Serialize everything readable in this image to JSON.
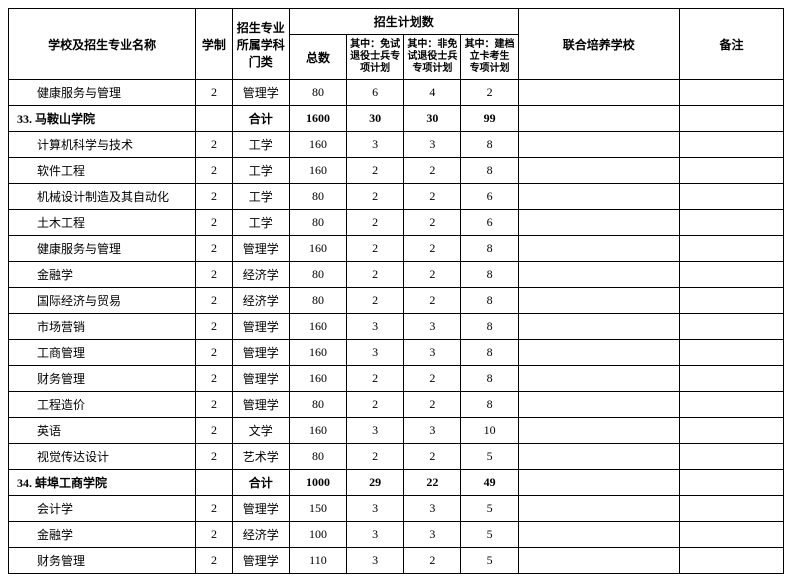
{
  "headers": {
    "name": "学校及招生专业名称",
    "xuezhi": "学制",
    "menlei": "招生专业\n所属学科\n门类",
    "plan_group": "招生计划数",
    "total": "总数",
    "sub1": "其中：免试退役士兵专项计划",
    "sub2": "其中：非免试退役士兵专项计划",
    "sub3": "其中：建档立卡考生专项计划",
    "joint": "联合培养学校",
    "remark": "备注"
  },
  "rows": [
    {
      "type": "major",
      "name": "健康服务与管理",
      "xuezhi": "2",
      "menlei": "管理学",
      "total": "80",
      "s1": "6",
      "s2": "4",
      "s3": "2",
      "joint": "",
      "remark": ""
    },
    {
      "type": "school",
      "name": "33. 马鞍山学院",
      "xuezhi": "",
      "menlei": "合计",
      "total": "1600",
      "s1": "30",
      "s2": "30",
      "s3": "99",
      "joint": "",
      "remark": ""
    },
    {
      "type": "major",
      "name": "计算机科学与技术",
      "xuezhi": "2",
      "menlei": "工学",
      "total": "160",
      "s1": "3",
      "s2": "3",
      "s3": "8",
      "joint": "",
      "remark": ""
    },
    {
      "type": "major",
      "name": "软件工程",
      "xuezhi": "2",
      "menlei": "工学",
      "total": "160",
      "s1": "2",
      "s2": "2",
      "s3": "8",
      "joint": "",
      "remark": ""
    },
    {
      "type": "major",
      "name": "机械设计制造及其自动化",
      "xuezhi": "2",
      "menlei": "工学",
      "total": "80",
      "s1": "2",
      "s2": "2",
      "s3": "6",
      "joint": "",
      "remark": ""
    },
    {
      "type": "major",
      "name": "土木工程",
      "xuezhi": "2",
      "menlei": "工学",
      "total": "80",
      "s1": "2",
      "s2": "2",
      "s3": "6",
      "joint": "",
      "remark": ""
    },
    {
      "type": "major",
      "name": "健康服务与管理",
      "xuezhi": "2",
      "menlei": "管理学",
      "total": "160",
      "s1": "2",
      "s2": "2",
      "s3": "8",
      "joint": "",
      "remark": ""
    },
    {
      "type": "major",
      "name": "金融学",
      "xuezhi": "2",
      "menlei": "经济学",
      "total": "80",
      "s1": "2",
      "s2": "2",
      "s3": "8",
      "joint": "",
      "remark": ""
    },
    {
      "type": "major",
      "name": "国际经济与贸易",
      "xuezhi": "2",
      "menlei": "经济学",
      "total": "80",
      "s1": "2",
      "s2": "2",
      "s3": "8",
      "joint": "",
      "remark": ""
    },
    {
      "type": "major",
      "name": "市场营销",
      "xuezhi": "2",
      "menlei": "管理学",
      "total": "160",
      "s1": "3",
      "s2": "3",
      "s3": "8",
      "joint": "",
      "remark": ""
    },
    {
      "type": "major",
      "name": "工商管理",
      "xuezhi": "2",
      "menlei": "管理学",
      "total": "160",
      "s1": "3",
      "s2": "3",
      "s3": "8",
      "joint": "",
      "remark": ""
    },
    {
      "type": "major",
      "name": "财务管理",
      "xuezhi": "2",
      "menlei": "管理学",
      "total": "160",
      "s1": "2",
      "s2": "2",
      "s3": "8",
      "joint": "",
      "remark": ""
    },
    {
      "type": "major",
      "name": "工程造价",
      "xuezhi": "2",
      "menlei": "管理学",
      "total": "80",
      "s1": "2",
      "s2": "2",
      "s3": "8",
      "joint": "",
      "remark": ""
    },
    {
      "type": "major",
      "name": "英语",
      "xuezhi": "2",
      "menlei": "文学",
      "total": "160",
      "s1": "3",
      "s2": "3",
      "s3": "10",
      "joint": "",
      "remark": ""
    },
    {
      "type": "major",
      "name": "视觉传达设计",
      "xuezhi": "2",
      "menlei": "艺术学",
      "total": "80",
      "s1": "2",
      "s2": "2",
      "s3": "5",
      "joint": "",
      "remark": ""
    },
    {
      "type": "school",
      "name": "34. 蚌埠工商学院",
      "xuezhi": "",
      "menlei": "合计",
      "total": "1000",
      "s1": "29",
      "s2": "22",
      "s3": "49",
      "joint": "",
      "remark": ""
    },
    {
      "type": "major",
      "name": "会计学",
      "xuezhi": "2",
      "menlei": "管理学",
      "total": "150",
      "s1": "3",
      "s2": "3",
      "s3": "5",
      "joint": "",
      "remark": ""
    },
    {
      "type": "major",
      "name": "金融学",
      "xuezhi": "2",
      "menlei": "经济学",
      "total": "100",
      "s1": "3",
      "s2": "3",
      "s3": "5",
      "joint": "",
      "remark": ""
    },
    {
      "type": "major",
      "name": "财务管理",
      "xuezhi": "2",
      "menlei": "管理学",
      "total": "110",
      "s1": "3",
      "s2": "2",
      "s3": "5",
      "joint": "",
      "remark": ""
    }
  ]
}
